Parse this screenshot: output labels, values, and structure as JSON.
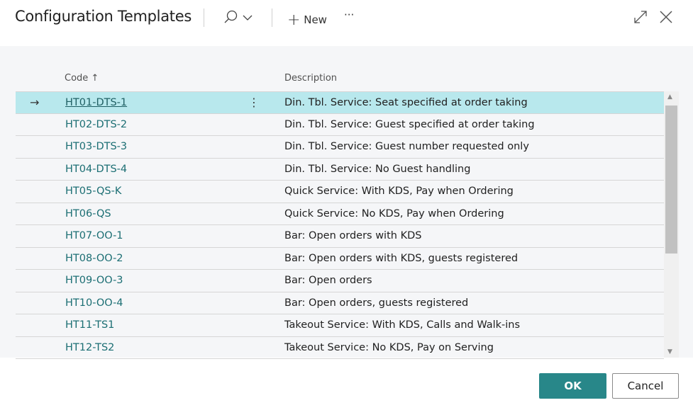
{
  "header": {
    "title": "Configuration Templates",
    "new_label": "New",
    "more_label": "···"
  },
  "columns": {
    "code": "Code",
    "sort_indicator": "↑",
    "description": "Description"
  },
  "rows": [
    {
      "code": "HT01-DTS-1",
      "description": "Din. Tbl. Service: Seat specified at order taking",
      "selected": true
    },
    {
      "code": "HT02-DTS-2",
      "description": "Din. Tbl. Service: Guest specified at order taking"
    },
    {
      "code": "HT03-DTS-3",
      "description": "Din. Tbl. Service: Guest number requested only"
    },
    {
      "code": "HT04-DTS-4",
      "description": "Din. Tbl. Service: No Guest handling"
    },
    {
      "code": "HT05-QS-K",
      "description": "Quick Service: With KDS, Pay when Ordering"
    },
    {
      "code": "HT06-QS",
      "description": "Quick Service: No KDS, Pay when Ordering"
    },
    {
      "code": "HT07-OO-1",
      "description": "Bar: Open orders with KDS"
    },
    {
      "code": "HT08-OO-2",
      "description": "Bar: Open orders with KDS, guests registered"
    },
    {
      "code": "HT09-OO-3",
      "description": "Bar: Open orders"
    },
    {
      "code": "HT10-OO-4",
      "description": "Bar: Open orders, guests registered"
    },
    {
      "code": "HT11-TS1",
      "description": "Takeout Service: With KDS, Calls and Walk-ins"
    },
    {
      "code": "HT12-TS2",
      "description": "Takeout Service: No KDS, Pay on Serving"
    }
  ],
  "footer": {
    "ok_label": "OK",
    "cancel_label": "Cancel"
  },
  "colors": {
    "accent": "#288789",
    "selected_row": "#b8e8ed",
    "link": "#1b6e73"
  }
}
